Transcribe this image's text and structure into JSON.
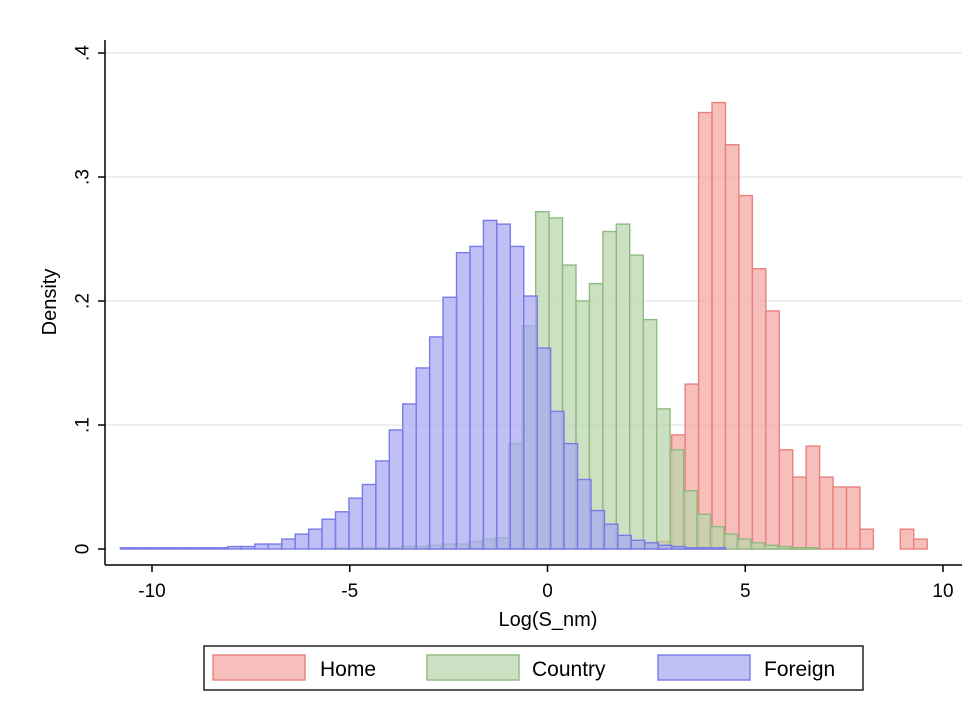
{
  "chart_data": {
    "type": "histogram",
    "xlabel": "Log(S_nm)",
    "ylabel": "Density",
    "xlim": [
      -11,
      10.5
    ],
    "ylim": [
      0,
      0.4
    ],
    "x_ticks": [
      -10,
      -5,
      0,
      5,
      10
    ],
    "x_tick_labels": [
      "-10",
      "-5",
      "0",
      "5",
      "10"
    ],
    "y_ticks": [
      0,
      0.1,
      0.2,
      0.3,
      0.4
    ],
    "y_tick_labels": [
      "0",
      ".1",
      ".2",
      ".3",
      ".4"
    ],
    "grid": "horizontal",
    "legend_position": "bottom",
    "bin_width": 0.34,
    "series": [
      {
        "name": "Home",
        "fill": "#f4a6a1",
        "stroke": "#e8827d",
        "bins": [
          {
            "x": 2.8,
            "y": 0.006
          },
          {
            "x": 3.14,
            "y": 0.092
          },
          {
            "x": 3.48,
            "y": 0.133
          },
          {
            "x": 3.82,
            "y": 0.352
          },
          {
            "x": 4.16,
            "y": 0.36
          },
          {
            "x": 4.5,
            "y": 0.326
          },
          {
            "x": 4.84,
            "y": 0.285
          },
          {
            "x": 5.18,
            "y": 0.226
          },
          {
            "x": 5.52,
            "y": 0.192
          },
          {
            "x": 5.86,
            "y": 0.08
          },
          {
            "x": 6.2,
            "y": 0.058
          },
          {
            "x": 6.54,
            "y": 0.083
          },
          {
            "x": 6.88,
            "y": 0.058
          },
          {
            "x": 7.22,
            "y": 0.05
          },
          {
            "x": 7.56,
            "y": 0.05
          },
          {
            "x": 7.9,
            "y": 0.016
          },
          {
            "x": 8.92,
            "y": 0.016
          },
          {
            "x": 9.26,
            "y": 0.008
          }
        ]
      },
      {
        "name": "Country",
        "fill": "#b8d6ac",
        "stroke": "#8fba80",
        "bins": [
          {
            "x": -5.4,
            "y": 0.001
          },
          {
            "x": -5.06,
            "y": 0.001
          },
          {
            "x": -4.72,
            "y": 0.001
          },
          {
            "x": -4.38,
            "y": 0.001
          },
          {
            "x": -4.04,
            "y": 0.001
          },
          {
            "x": -3.7,
            "y": 0.002
          },
          {
            "x": -3.36,
            "y": 0.002
          },
          {
            "x": -3.02,
            "y": 0.003
          },
          {
            "x": -2.68,
            "y": 0.004
          },
          {
            "x": -2.34,
            "y": 0.004
          },
          {
            "x": -2.0,
            "y": 0.006
          },
          {
            "x": -1.66,
            "y": 0.008
          },
          {
            "x": -1.32,
            "y": 0.009
          },
          {
            "x": -0.98,
            "y": 0.085
          },
          {
            "x": -0.64,
            "y": 0.18
          },
          {
            "x": -0.3,
            "y": 0.272
          },
          {
            "x": 0.04,
            "y": 0.267
          },
          {
            "x": 0.38,
            "y": 0.229
          },
          {
            "x": 0.72,
            "y": 0.2
          },
          {
            "x": 1.06,
            "y": 0.214
          },
          {
            "x": 1.4,
            "y": 0.256
          },
          {
            "x": 1.74,
            "y": 0.262
          },
          {
            "x": 2.08,
            "y": 0.237
          },
          {
            "x": 2.42,
            "y": 0.185
          },
          {
            "x": 2.76,
            "y": 0.113
          },
          {
            "x": 3.1,
            "y": 0.08
          },
          {
            "x": 3.44,
            "y": 0.047
          },
          {
            "x": 3.78,
            "y": 0.028
          },
          {
            "x": 4.12,
            "y": 0.018
          },
          {
            "x": 4.46,
            "y": 0.012
          },
          {
            "x": 4.8,
            "y": 0.008
          },
          {
            "x": 5.14,
            "y": 0.005
          },
          {
            "x": 5.48,
            "y": 0.003
          },
          {
            "x": 5.82,
            "y": 0.002
          },
          {
            "x": 6.16,
            "y": 0.001
          },
          {
            "x": 6.5,
            "y": 0.001
          }
        ]
      },
      {
        "name": "Foreign",
        "fill": "#a8a8f3",
        "stroke": "#7a7ae8",
        "bins": [
          {
            "x": -10.8,
            "y": 0.001
          },
          {
            "x": -10.46,
            "y": 0.001
          },
          {
            "x": -10.12,
            "y": 0.001
          },
          {
            "x": -9.78,
            "y": 0.001
          },
          {
            "x": -9.44,
            "y": 0.001
          },
          {
            "x": -9.1,
            "y": 0.001
          },
          {
            "x": -8.76,
            "y": 0.001
          },
          {
            "x": -8.42,
            "y": 0.001
          },
          {
            "x": -8.08,
            "y": 0.002
          },
          {
            "x": -7.74,
            "y": 0.002
          },
          {
            "x": -7.4,
            "y": 0.004
          },
          {
            "x": -7.06,
            "y": 0.004
          },
          {
            "x": -6.72,
            "y": 0.008
          },
          {
            "x": -6.38,
            "y": 0.012
          },
          {
            "x": -6.04,
            "y": 0.016
          },
          {
            "x": -5.7,
            "y": 0.024
          },
          {
            "x": -5.36,
            "y": 0.03
          },
          {
            "x": -5.02,
            "y": 0.041
          },
          {
            "x": -4.68,
            "y": 0.052
          },
          {
            "x": -4.34,
            "y": 0.071
          },
          {
            "x": -4.0,
            "y": 0.096
          },
          {
            "x": -3.66,
            "y": 0.117
          },
          {
            "x": -3.32,
            "y": 0.146
          },
          {
            "x": -2.98,
            "y": 0.171
          },
          {
            "x": -2.64,
            "y": 0.203
          },
          {
            "x": -2.3,
            "y": 0.239
          },
          {
            "x": -1.96,
            "y": 0.244
          },
          {
            "x": -1.62,
            "y": 0.265
          },
          {
            "x": -1.28,
            "y": 0.262
          },
          {
            "x": -0.94,
            "y": 0.244
          },
          {
            "x": -0.6,
            "y": 0.204
          },
          {
            "x": -0.26,
            "y": 0.162
          },
          {
            "x": 0.08,
            "y": 0.111
          },
          {
            "x": 0.42,
            "y": 0.085
          },
          {
            "x": 0.76,
            "y": 0.056
          },
          {
            "x": 1.1,
            "y": 0.031
          },
          {
            "x": 1.44,
            "y": 0.02
          },
          {
            "x": 1.78,
            "y": 0.011
          },
          {
            "x": 2.12,
            "y": 0.007
          },
          {
            "x": 2.46,
            "y": 0.005
          },
          {
            "x": 2.8,
            "y": 0.003
          },
          {
            "x": 3.14,
            "y": 0.002
          },
          {
            "x": 3.48,
            "y": 0.001
          },
          {
            "x": 3.82,
            "y": 0.001
          },
          {
            "x": 4.16,
            "y": 0.001
          }
        ]
      }
    ]
  }
}
